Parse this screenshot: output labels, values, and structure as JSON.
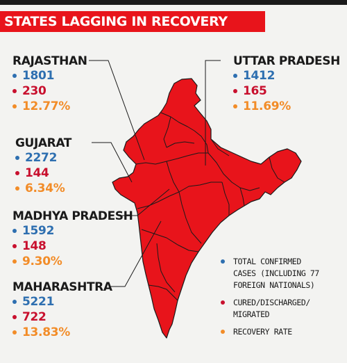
{
  "title": "STATES LAGGING IN RECOVERY",
  "colors": {
    "confirmed": "#2e6fb0",
    "cured": "#c8102e",
    "recovery": "#f28c28",
    "map_fill": "#e8141b",
    "border": "#1a1a1a"
  },
  "states": [
    {
      "name": "RAJASTHAN",
      "confirmed": "1801",
      "cured": "230",
      "recovery_rate": "12.77%"
    },
    {
      "name": "UTTAR PRADESH",
      "confirmed": "1412",
      "cured": "165",
      "recovery_rate": "11.69%"
    },
    {
      "name": "GUJARAT",
      "confirmed": "2272",
      "cured": "144",
      "recovery_rate": "6.34%"
    },
    {
      "name": "MADHYA PRADESH",
      "confirmed": "1592",
      "cured": "148",
      "recovery_rate": "9.30%"
    },
    {
      "name": "MAHARASHTRA",
      "confirmed": "5221",
      "cured": "722",
      "recovery_rate": "13.83%"
    }
  ],
  "legend": [
    {
      "label": "TOTAL CONFIRMED\nCASES (INCLUDING 77\nFOREIGN NATIONALS)",
      "color_key": "confirmed",
      "icon": "blue-dot"
    },
    {
      "label": "CURED/DISCHARGED/\nMIGRATED",
      "color_key": "cured",
      "icon": "red-dot"
    },
    {
      "label": "RECOVERY RATE",
      "color_key": "recovery",
      "icon": "orange-dot"
    }
  ]
}
